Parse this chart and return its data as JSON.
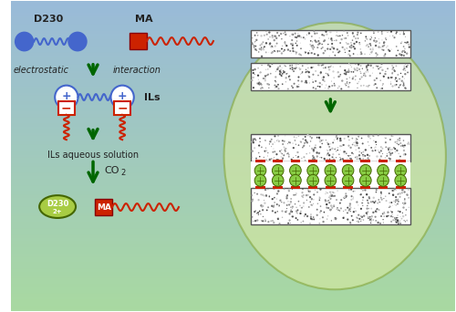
{
  "bg_color_top": "#a8d8a0",
  "bg_color_bottom": "#a0c8d8",
  "arrow_color": "#006600",
  "d230_color": "#4466cc",
  "ma_color": "#cc2200",
  "text_color": "#222222",
  "oval_color": "#d4e8a0",
  "title_d230": "D230",
  "title_ma": "MA",
  "label_ils": "ILs",
  "label_electrostatic": "electrostatic",
  "label_interaction": "interaction",
  "label_ils_solution": "ILs aqueous solution",
  "label_co2": "CO",
  "co2_sub": "2",
  "label_d230_text": "D230",
  "label_2plus": "2+",
  "label_ma_bottom": "MA",
  "green_il_color": "#88cc44",
  "green_il_edge": "#446600",
  "d230plus_ellipse_color": "#a8cc44"
}
